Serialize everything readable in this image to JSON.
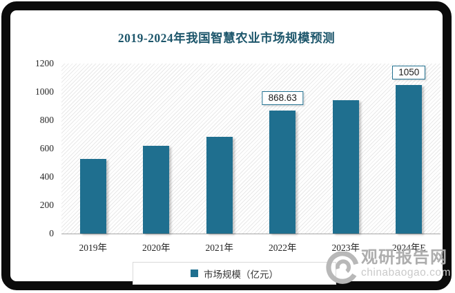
{
  "title": "2019-2024年我国智慧农业市场规模预测",
  "chart_data": {
    "type": "bar",
    "title": "2019-2024年我国智慧农业市场规模预测",
    "categories": [
      "2019年",
      "2020年",
      "2021年",
      "2022年",
      "2023年",
      "2024年E"
    ],
    "values": [
      525,
      620,
      685,
      868.63,
      940,
      1050
    ],
    "data_labels": [
      null,
      null,
      null,
      "868.63",
      null,
      "1050"
    ],
    "series_name": "市场规模（亿元）",
    "xlabel": "",
    "ylabel": "",
    "ylim": [
      0,
      1200
    ],
    "yticks": [
      0,
      200,
      400,
      600,
      800,
      1000,
      1200
    ],
    "grid": false,
    "legend_position": "bottom",
    "bar_color": "#1F6F8F",
    "plot_background": "diagonal-hatch"
  },
  "legend": {
    "label": "市场规模（亿元）",
    "marker_color": "#1F6F8F"
  },
  "watermark": {
    "site_name": "观研报告网",
    "site_url": "chinabaogao.com"
  },
  "colors": {
    "bar": "#1F6F8F",
    "title": "#1D566B",
    "axis_line": "#A6A6A6",
    "label_box_border": "#1F6F8F",
    "watermark_text": "#ADADAD",
    "watermark_url": "#C9C9C9"
  }
}
